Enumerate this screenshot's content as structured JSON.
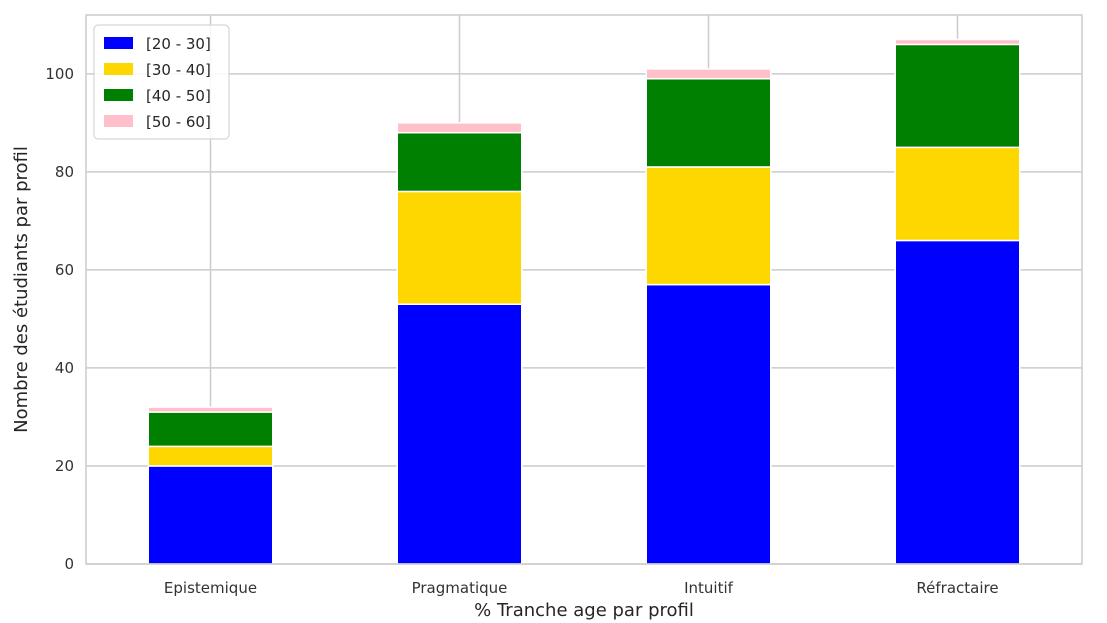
{
  "chart_data": {
    "type": "bar",
    "stacked": true,
    "title": "",
    "xlabel": "% Tranche age par profil",
    "ylabel": "Nombre des étudiants par profil",
    "categories": [
      "Epistemique",
      "Pragmatique",
      "Intuitif",
      "Réfractaire"
    ],
    "ylim": [
      0,
      112
    ],
    "yticks": [
      "0",
      "20",
      "40",
      "60",
      "80",
      "100"
    ],
    "grid": true,
    "legend_position": "top-left",
    "series": [
      {
        "name": "[20 - 30]",
        "color": "#0000ff",
        "values": [
          20,
          53,
          57,
          66
        ]
      },
      {
        "name": "[30 - 40]",
        "color": "#ffd700",
        "values": [
          4,
          23,
          24,
          19
        ]
      },
      {
        "name": "[40 - 50]",
        "color": "#008000",
        "values": [
          7,
          12,
          18,
          21
        ]
      },
      {
        "name": "[50 - 60]",
        "color": "#ffc0cb",
        "values": [
          1,
          2,
          2,
          1
        ]
      }
    ]
  }
}
